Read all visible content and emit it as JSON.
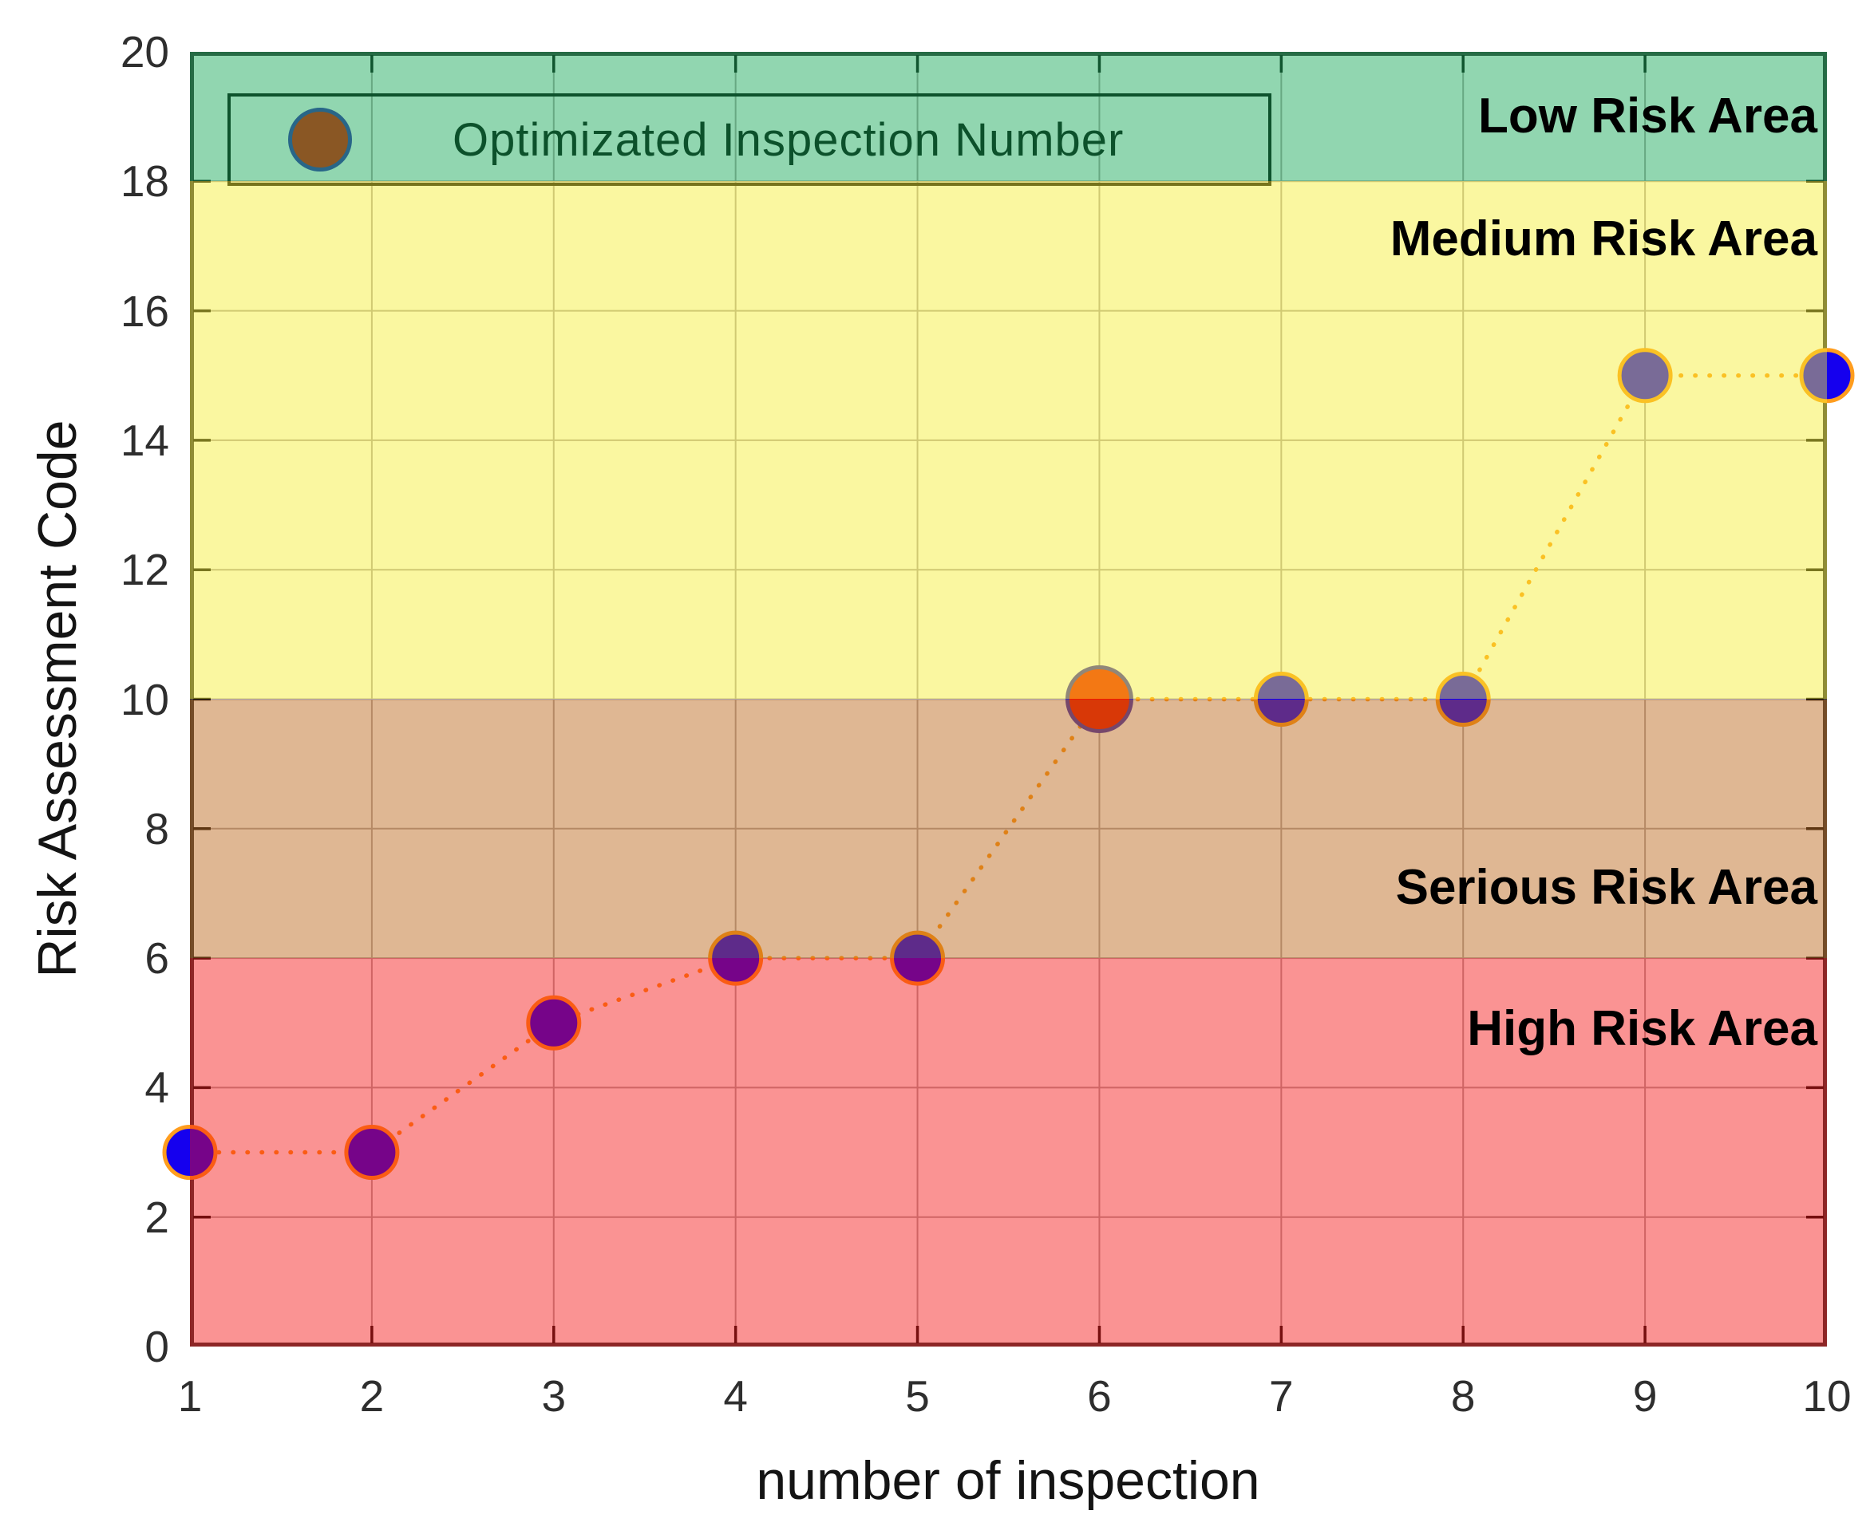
{
  "legend": {
    "label": "Optimizated Inspection Number",
    "marker_icon": "filled-circle"
  },
  "chart_data": {
    "type": "line",
    "subtype": "scatter-with-dotted-line",
    "title": "",
    "xlabel": "number of inspection",
    "ylabel": "Risk Assessment Code",
    "x": [
      1,
      2,
      3,
      4,
      5,
      6,
      7,
      8,
      9,
      10
    ],
    "y": [
      3,
      3,
      5,
      6,
      6,
      10,
      10,
      10,
      15,
      15
    ],
    "optimized_point": {
      "x": 6,
      "y": 10,
      "legend_label": "Optimizated Inspection Number"
    },
    "xlim": [
      1,
      10
    ],
    "ylim": [
      0,
      20
    ],
    "xticks": [
      1,
      2,
      3,
      4,
      5,
      6,
      7,
      8,
      9,
      10
    ],
    "yticks": [
      0,
      2,
      4,
      6,
      8,
      10,
      12,
      14,
      16,
      18,
      20
    ],
    "grid": true,
    "legend_position": "top-left",
    "zones": [
      {
        "label": "Low Risk Area",
        "from": 18,
        "to": 20,
        "overlay_color": "rgba(10,165,80,0.45)",
        "appears_as": "#8fd6af",
        "label_y": 19.0
      },
      {
        "label": "Medium Risk Area",
        "from": 10,
        "to": 18,
        "overlay_color": "rgba(243,237,45,0.45)",
        "appears_as": "#f9f7a0",
        "label_y": 17.1
      },
      {
        "label": "Serious Risk Area",
        "from": 6,
        "to": 10,
        "overlay_color": "rgba(184,95,15,0.45)",
        "appears_as": "#dfb793",
        "label_y": 7.08
      },
      {
        "label": "High Risk Area",
        "from": 0,
        "to": 6,
        "overlay_color": "rgba(243,10,10,0.44)",
        "appears_as": "#fa9494",
        "label_y": 4.9
      }
    ],
    "colors": {
      "marker_fill": "#1500ee",
      "marker_edge": "#ff9d1e",
      "optimized_fill": "#f21800",
      "optimized_edge": "#4034b6",
      "line": "#ff9d1e",
      "grid": "#b3abab",
      "axis_box": "#3d3d3d",
      "tick": "#141414"
    }
  }
}
